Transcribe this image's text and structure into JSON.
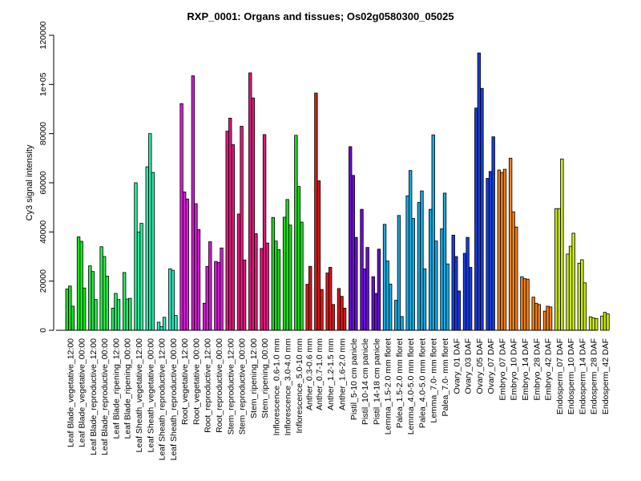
{
  "chart_data": {
    "type": "bar",
    "title": "RXP_0001: Organs and tissues; Os02g0580300_05025",
    "ylabel": "Cy3 signal intensity",
    "xlabel": "",
    "ylim": [
      0,
      120000
    ],
    "yticks": [
      {
        "value": 0,
        "label": "0"
      },
      {
        "value": 20000,
        "label": "20000"
      },
      {
        "value": 40000,
        "label": "40000"
      },
      {
        "value": 60000,
        "label": "60000"
      },
      {
        "value": 80000,
        "label": "80000"
      },
      {
        "value": 100000,
        "label": "1e+05"
      },
      {
        "value": 120000,
        "label": "120000"
      }
    ],
    "grid": false,
    "legend": "none",
    "bar_outline": "#000000",
    "groups": [
      {
        "label": "Leaf Blade_vegetative_12:00",
        "color": "#17e51f",
        "values": [
          16800,
          18000,
          9800
        ]
      },
      {
        "label": "Leaf Blade_vegetative_00:00",
        "color": "#17e51f",
        "values": [
          38000,
          36200,
          17200
        ]
      },
      {
        "label": "Leaf Blade_reproductive_12:00",
        "color": "#2ee84a",
        "values": [
          26200,
          23900,
          12500
        ]
      },
      {
        "label": "Leaf Blade_reproductive_00:00",
        "color": "#2ee84a",
        "values": [
          34000,
          30000,
          22000
        ]
      },
      {
        "label": "Leaf Blade_ripening_12:00",
        "color": "#2ee86a",
        "values": [
          9000,
          15000,
          12500
        ]
      },
      {
        "label": "Leaf Blade_ripening_00:00",
        "color": "#2ee86a",
        "values": [
          23500,
          12700,
          13000
        ]
      },
      {
        "label": "Leaf Sheath_vegetative_12:00",
        "color": "#2ee89a",
        "values": [
          60000,
          40000,
          43500
        ]
      },
      {
        "label": "Leaf Sheath_vegetative_00:00",
        "color": "#2ee8aa",
        "values": [
          66500,
          80000,
          64200
        ]
      },
      {
        "label": "Leaf Sheath_reproductive_12:00",
        "color": "#2ee8be",
        "values": [
          3300,
          1500,
          5300
        ]
      },
      {
        "label": "Leaf Sheath_reproductive_00:00",
        "color": "#2ee8be",
        "values": [
          25000,
          24400,
          6000
        ]
      },
      {
        "label": "Root_vegetative_12:00",
        "color": "#d21ed2",
        "values": [
          92200,
          56300,
          53400
        ]
      },
      {
        "label": "Root_vegetative_00:00",
        "color": "#d21ed2",
        "values": [
          103500,
          51500,
          41000
        ]
      },
      {
        "label": "Root_reproductive_12:00",
        "color": "#d21ed2",
        "values": [
          11000,
          26000,
          36000
        ]
      },
      {
        "label": "Root_reproductive_00:00",
        "color": "#d21ed2",
        "values": [
          28000,
          27600,
          33500
        ]
      },
      {
        "label": "Stem_reproductive_12:00",
        "color": "#e0197a",
        "values": [
          81000,
          86300,
          75500
        ]
      },
      {
        "label": "Stem_reproductive_00:00",
        "color": "#e0197a",
        "values": [
          47300,
          83000,
          28600
        ]
      },
      {
        "label": "Stem_ripening_12:00",
        "color": "#e0197a",
        "values": [
          104700,
          94500,
          39300
        ]
      },
      {
        "label": "Stem_ripening_00:00",
        "color": "#e0197a",
        "values": [
          33300,
          79600,
          35500
        ]
      },
      {
        "label": "Inflorescence_0.6-1.0 mm",
        "color": "#1ed81e",
        "values": [
          45900,
          36300,
          32800
        ]
      },
      {
        "label": "Inflorescence_3.0-4.0 mm",
        "color": "#1ed81e",
        "values": [
          46000,
          53200,
          42800
        ]
      },
      {
        "label": "Inflorescence_5.0-10 mm",
        "color": "#1ed81e",
        "values": [
          79300,
          58500,
          44000
        ]
      },
      {
        "label": "Anther_0.3-0.6 mm",
        "color": "#d81818",
        "values": [
          18700,
          26000
        ]
      },
      {
        "label": "Anther_0.7-1.0 mm",
        "color": "#d81818",
        "values": [
          96500,
          60800,
          16600
        ]
      },
      {
        "label": "Anther_1.2-1.5 mm",
        "color": "#d81818",
        "values": [
          23300,
          25600,
          10500
        ]
      },
      {
        "label": "Anther_1.6-2.0 mm",
        "color": "#d81818",
        "values": [
          17000,
          13800,
          9000
        ]
      },
      {
        "label": "Pistil_5-10 cm panicle",
        "color": "#6a0fd8",
        "values": [
          74700,
          63000,
          37800
        ]
      },
      {
        "label": "Pistil_10-14 cm panicle",
        "color": "#6a0fd8",
        "values": [
          49200,
          25000,
          33700
        ]
      },
      {
        "label": "Pistil_14-18 cm panicle",
        "color": "#6a0fd8",
        "values": [
          21800,
          15000,
          33000
        ]
      },
      {
        "label": "Lemma_1.5-2.0 mm floret",
        "color": "#19a8e0",
        "values": [
          43100,
          28200,
          18800
        ]
      },
      {
        "label": "Palea_1.5-2.0 mm floret",
        "color": "#19a8e0",
        "values": [
          12200,
          46700,
          5600
        ]
      },
      {
        "label": "Lemma_4.0-5.0 mm floret",
        "color": "#19a8e0",
        "values": [
          54700,
          65000,
          45500
        ]
      },
      {
        "label": "Palea_4.0-5.0 mm floret",
        "color": "#19a8e0",
        "values": [
          52000,
          56700,
          25000
        ]
      },
      {
        "label": "Lemma_7.0- mm floret",
        "color": "#19a8e0",
        "values": [
          49200,
          79500,
          36300
        ]
      },
      {
        "label": "Palea_7.0- mm floret",
        "color": "#19a8e0",
        "values": [
          41300,
          55800,
          27000
        ]
      },
      {
        "label": "Ovary_01 DAF",
        "color": "#1a3ce0",
        "values": [
          38700,
          30000,
          16000
        ]
      },
      {
        "label": "Ovary_03 DAF",
        "color": "#1a3ce0",
        "values": [
          31300,
          37800,
          25600
        ]
      },
      {
        "label": "Ovary_05 DAF",
        "color": "#1a3ce0",
        "values": [
          90400,
          112800,
          98400
        ]
      },
      {
        "label": "Ovary_07 DAF",
        "color": "#1a3ce0",
        "values": [
          61800,
          64600,
          78700
        ]
      },
      {
        "label": "Embryo_07 DAF",
        "color": "#ee7f1e",
        "values": [
          65200,
          64200,
          65500
        ]
      },
      {
        "label": "Embryo_10 DAF",
        "color": "#ee7f1e",
        "values": [
          70000,
          48200,
          42000
        ]
      },
      {
        "label": "Embryo_14 DAF",
        "color": "#ee7f1e",
        "values": [
          21800,
          21000,
          20800
        ]
      },
      {
        "label": "Embryo_28 DAF",
        "color": "#ee7f1e",
        "values": [
          13500,
          11000,
          10500
        ]
      },
      {
        "label": "Embryo_42 DAF",
        "color": "#ee7f1e",
        "values": [
          7800,
          9800,
          9500
        ]
      },
      {
        "label": "Endosperm_07 DAF",
        "color": "#c8e61a",
        "values": [
          49500,
          49500,
          69700
        ]
      },
      {
        "label": "Endosperm_10 DAF",
        "color": "#c8e61a",
        "values": [
          31000,
          34200,
          39500
        ]
      },
      {
        "label": "Endosperm_14 DAF",
        "color": "#c8e61a",
        "values": [
          27300,
          28700,
          19300
        ]
      },
      {
        "label": "Endosperm_28 DAF",
        "color": "#c8e61a",
        "values": [
          5500,
          5000,
          4800
        ]
      },
      {
        "label": "Endosperm_42 DAF",
        "color": "#c8e61a",
        "values": [
          5800,
          7300,
          6700
        ]
      }
    ]
  }
}
